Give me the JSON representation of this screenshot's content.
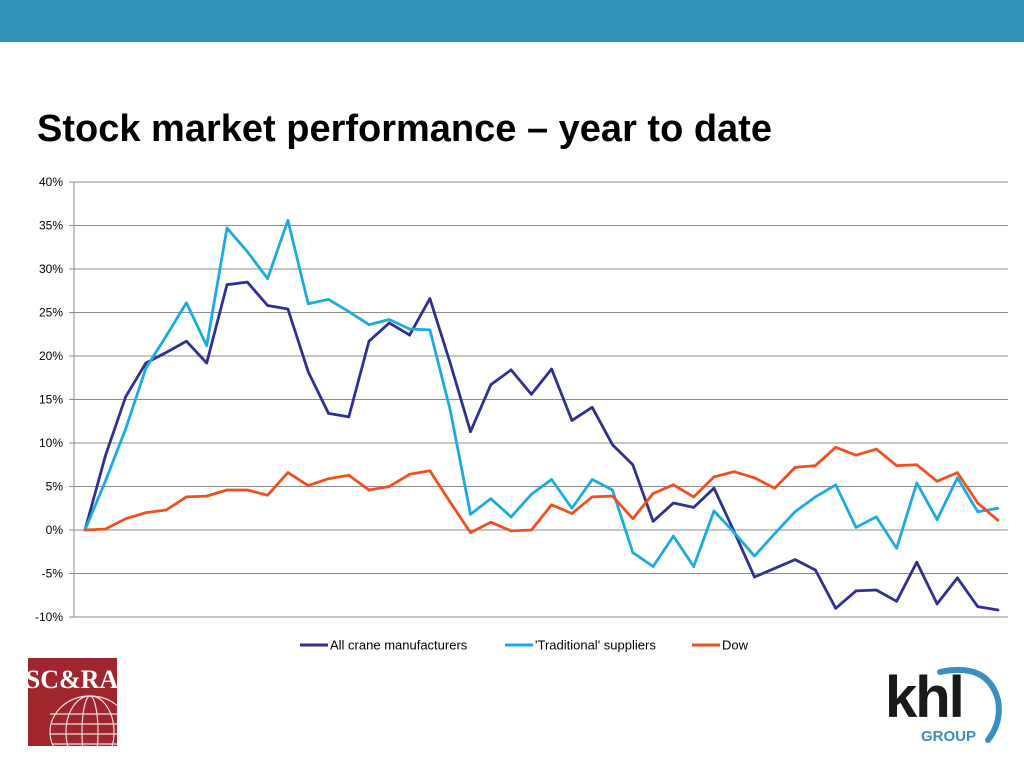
{
  "slide": {
    "title": "Stock market performance – year to date"
  },
  "colors": {
    "top_bar": "#3392b8",
    "all_crane": "#2e3192",
    "traditional": "#1aabe0",
    "dow": "#f0501e",
    "logo_left_bg": "#a0262e"
  },
  "logos": {
    "left": "SC&RA",
    "right_word": "khl",
    "right_sub": "GROUP"
  },
  "chart_data": {
    "type": "line",
    "ylim": [
      -10,
      40
    ],
    "yticks": [
      40,
      35,
      30,
      25,
      20,
      15,
      10,
      5,
      0,
      -5,
      -10
    ],
    "ytick_labels": [
      "40%",
      "35%",
      "30%",
      "25%",
      "20%",
      "15%",
      "10%",
      "5%",
      "0%",
      "-5%",
      "-10%"
    ],
    "grid": true,
    "legend_position": "bottom",
    "n_points": 46,
    "series": [
      {
        "name": "All crane manufacturers",
        "color": "#2e3192",
        "values": [
          0,
          8.5,
          15.3,
          19.2,
          20.4,
          21.7,
          19.2,
          28.2,
          28.5,
          25.8,
          25.4,
          18.2,
          13.4,
          13.0,
          21.7,
          23.8,
          22.4,
          26.6,
          19.2,
          11.3,
          16.7,
          18.4,
          15.6,
          18.5,
          12.6,
          14.1,
          9.8,
          7.5,
          1.0,
          3.1,
          2.6,
          4.8,
          -0.2,
          -5.4,
          -4.4,
          -3.4,
          -4.6,
          -9.0,
          -7.0,
          -6.9,
          -8.2,
          -3.7,
          -8.5,
          -5.5,
          -8.8,
          -9.2
        ]
      },
      {
        "name": "'Traditional' suppliers",
        "color": "#1aabe0",
        "values": [
          0,
          5.6,
          11.6,
          18.6,
          22.3,
          26.1,
          21.2,
          34.7,
          32.0,
          28.9,
          35.6,
          26.0,
          26.5,
          25.1,
          23.6,
          24.2,
          23.1,
          23.0,
          13.8,
          1.8,
          3.6,
          1.5,
          4.1,
          5.8,
          2.5,
          5.8,
          4.6,
          -2.6,
          -4.2,
          -0.7,
          -4.2,
          2.2,
          -0.3,
          -3.0,
          -0.4,
          2.1,
          3.8,
          5.2,
          0.3,
          1.5,
          -2.1,
          5.4,
          1.2,
          6.0,
          2.1,
          2.5
        ]
      },
      {
        "name": "Dow",
        "color": "#f0501e",
        "values": [
          0,
          0.1,
          1.3,
          2.0,
          2.3,
          3.8,
          3.9,
          4.6,
          4.6,
          4.0,
          6.6,
          5.1,
          5.9,
          6.3,
          4.6,
          5.0,
          6.4,
          6.8,
          3.2,
          -0.3,
          0.9,
          -0.1,
          0.0,
          2.9,
          1.9,
          3.8,
          3.9,
          1.3,
          4.2,
          5.2,
          3.8,
          6.1,
          6.7,
          6.0,
          4.8,
          7.2,
          7.4,
          9.5,
          8.6,
          9.3,
          7.4,
          7.5,
          5.6,
          6.6,
          3.1,
          1.1
        ]
      }
    ]
  }
}
